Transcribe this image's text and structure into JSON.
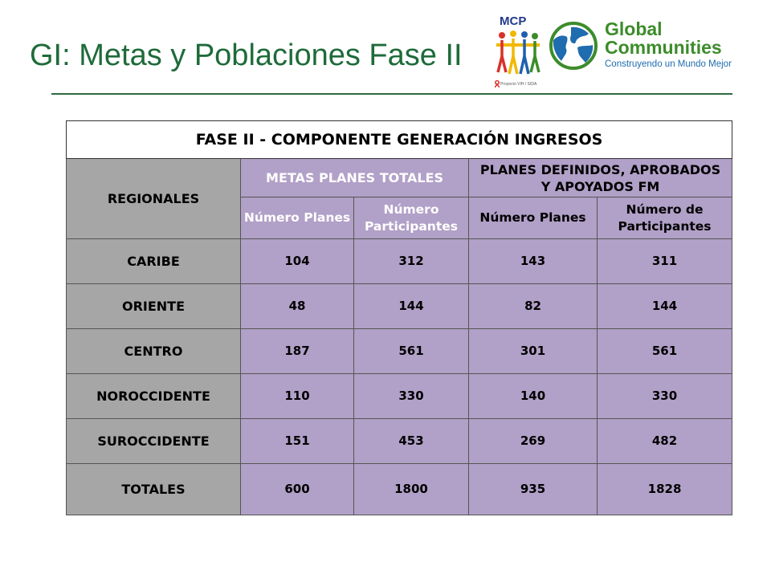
{
  "slide": {
    "title": "GI: Metas y Poblaciones Fase II"
  },
  "logos": {
    "mcp": {
      "name": "MCP",
      "sub": "Proyecto VIH / SIDA",
      "colors": [
        "#d9312b",
        "#f2b800",
        "#1f5fb0",
        "#3c8c2a"
      ]
    },
    "global_communities": {
      "name_line1": "Global",
      "name_line2": "Communities",
      "tagline": "Construyendo un Mundo Mejor",
      "green": "#3c8c2a",
      "blue": "#1f6cae"
    }
  },
  "table": {
    "title": "FASE II - COMPONENTE GENERACIÓN INGRESOS",
    "header": {
      "regionales": "REGIONALES",
      "metas": "METAS PLANES TOTALES",
      "planes_definidos_line1": "PLANES DEFINIDOS, APROBADOS",
      "planes_definidos_line2": "Y APOYADOS FM",
      "col_metas_planes": "Número Planes",
      "col_metas_part_line1": "Número",
      "col_metas_part_line2": "Participantes",
      "col_def_planes": "Número Planes",
      "col_def_part_line1": "Número de",
      "col_def_part_line2": "Participantes"
    },
    "rows": [
      {
        "region": "CARIBE",
        "metas_planes": "104",
        "metas_part": "312",
        "def_planes": "143",
        "def_part": "311"
      },
      {
        "region": "ORIENTE",
        "metas_planes": "48",
        "metas_part": "144",
        "def_planes": "82",
        "def_part": "144"
      },
      {
        "region": "CENTRO",
        "metas_planes": "187",
        "metas_part": "561",
        "def_planes": "301",
        "def_part": "561"
      },
      {
        "region": "NOROCCIDENTE",
        "metas_planes": "110",
        "metas_part": "330",
        "def_planes": "140",
        "def_part": "330"
      },
      {
        "region": "SUROCCIDENTE",
        "metas_planes": "151",
        "metas_part": "453",
        "def_planes": "269",
        "def_part": "482"
      }
    ],
    "totals": {
      "region": "TOTALES",
      "metas_planes": "600",
      "metas_part": "1800",
      "def_planes": "935",
      "def_part": "1828"
    },
    "colors": {
      "region_bg": "#a6a6a6",
      "data_bg": "#b1a0c7",
      "group_header_text": "#ffffff"
    }
  }
}
